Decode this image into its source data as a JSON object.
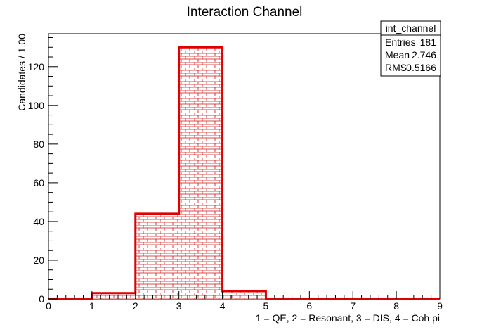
{
  "chart_data": {
    "type": "bar",
    "title": "Interaction Channel",
    "xlabel": "1 = QE, 2 = Resonant, 3 = DIS, 4 = Coh pi",
    "ylabel": "Candidates / 1.00",
    "bin_edges": [
      0,
      1,
      2,
      3,
      4,
      5,
      6,
      7,
      8,
      9
    ],
    "values": [
      0,
      3,
      44,
      130,
      4,
      0,
      0,
      0,
      0
    ],
    "xlim": [
      0,
      9
    ],
    "ylim": [
      0,
      137
    ],
    "x_ticks": [
      "0",
      "1",
      "2",
      "3",
      "4",
      "5",
      "6",
      "7",
      "8",
      "9"
    ],
    "y_ticks": [
      "0",
      "20",
      "40",
      "60",
      "80",
      "100",
      "120"
    ],
    "y_tick_values": [
      0,
      20,
      40,
      60,
      80,
      100,
      120
    ],
    "grid": false,
    "line_color": "#e00000",
    "fill_pattern": "brick",
    "stats_box": {
      "name": "int_channel",
      "rows": [
        {
          "label": "Entries",
          "value": "181"
        },
        {
          "label": "Mean",
          "value": "2.746"
        },
        {
          "label": "RMS",
          "value": "0.5166"
        }
      ],
      "placement": "top-right"
    }
  }
}
